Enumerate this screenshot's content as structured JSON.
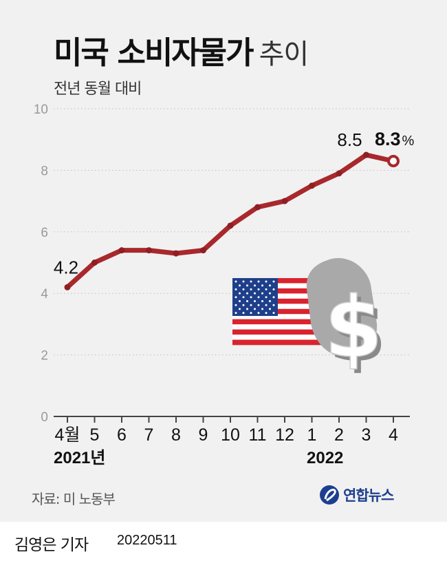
{
  "title_bold": "미국 소비자물가",
  "title_light": "추이",
  "subtitle": "전년 동월 대비",
  "chart_data": {
    "type": "line",
    "categories": [
      "4월",
      "5",
      "6",
      "7",
      "8",
      "9",
      "10",
      "11",
      "12",
      "1",
      "2",
      "3",
      "4"
    ],
    "values": [
      4.2,
      5.0,
      5.4,
      5.4,
      5.3,
      5.4,
      6.2,
      6.8,
      7.0,
      7.5,
      7.9,
      8.5,
      8.3
    ],
    "ylim": [
      0,
      10
    ],
    "yticks": [
      "0",
      "2",
      "4",
      "6",
      "8",
      "10"
    ],
    "year_labels": [
      "2021년",
      "2022"
    ],
    "data_labels": {
      "first": "4.2",
      "peak": "8.5",
      "last": "8.3",
      "last_unit": "%"
    },
    "grid": true,
    "line_color": "#a8282c"
  },
  "source": "자료: 미 노동부",
  "brand": "연합뉴스",
  "footer": {
    "reporter": "김영은 기자",
    "date": "20220511"
  },
  "icons": [
    "us-flag-icon",
    "dollar-sign-icon",
    "yonhap-logo-icon"
  ]
}
